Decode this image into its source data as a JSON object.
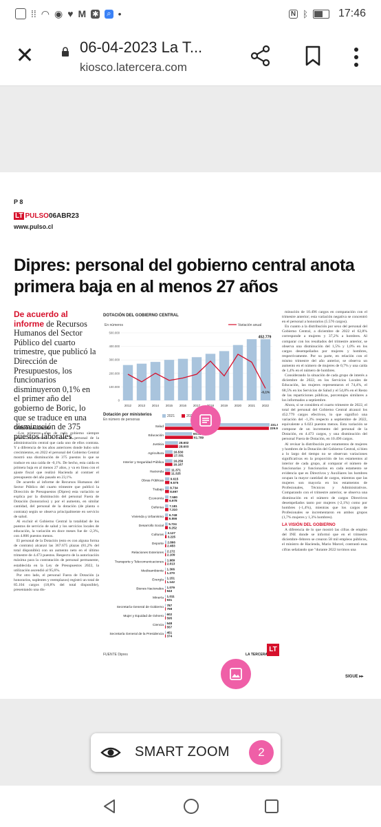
{
  "status_bar": {
    "time": "17:46",
    "left_icons": [
      "wifi-icon",
      "globe-icon",
      "heart-icon",
      "messenger-icon",
      "star-app-icon",
      "search-app-icon",
      "dot-icon"
    ],
    "right_icons": [
      "nfc-icon",
      "bluetooth-icon",
      "battery-icon"
    ]
  },
  "browser": {
    "title": "06-04-2023 La T...",
    "url": "kiosco.latercera.com"
  },
  "article": {
    "page_number": "P 8",
    "brand_lt": "LT",
    "brand_name": "PULSO",
    "brand_date": "06ABR23",
    "website": "www.pulso.cl",
    "headline": "Dipres: personal del gobierno central anota primera baja en al menos 27 años",
    "lead_red": "De acuerdo al informe",
    "lead_rest": "de Recursos Humanos del Sector Público del cuarto trimestre, que publicó la Dirección de Presupuestos, los funcionarios disminuyeron 0,1% en el primer año del gobierno de Boric, lo que se traduce en una disminución de 375 puestos laborales.",
    "byline": "CARLOS ALONSO",
    "col1_paragraphs": [
      "–Los primeros años de cada gobierno siempre generan expectativas en cuanto al personal de la administración central que cada uno de ellos contrata. Y a diferencia de los años anteriores donde hubo solo crecimientos, en 2022 el personal del Gobierno Central mostró una disminución de 375 puestos lo que se traduce en una caída de -0,1%. De hecho, esta caída es primera baja en al menos 27 años, y va en línea con el ajuste fiscal que realizó Hacienda al contraer el presupuesto del año pasado en 23,1%.",
      "De acuerdo al informe de Recursos Humanos del Sector Público del cuarto trimestre que publicó la Dirección de Presupuestos (Dipres) esta variación se explica por la disminución del personal Fuera de Dotación (honorarios) y por el aumento, en similar cantidad, del personal de la dotación (de planta o contrata) según se observa principalmente en servicio de salud.",
      "Al excluir el Gobierno Central la totalidad de los puestos de servicio de salud y los servicios locales de educación, la variación en doce meses fue de -2,3%, con 4.806 puestos menos.",
      "El personal de la Dotación (esto es con alguna forma de contrato) alcanzó las 367.675 plazas (81,2% del total disponible) con un aumento neto en el último trimestre de 4.473 puestos. Respecto de la autorización máxima para la contratación de personal permanente, establecida en la Ley de Presupuestos 2022, la utilización ascendió al 95,6%.",
      "Por otro lado, el personal Fuera de Dotación (a honorarios, suplentes y reemplazos) registró un total de 85.104 cargos (18,8% del total disponible), presentando una dis-"
    ],
    "col3_paragraphs": [
      "minución de 10.496 cargos en comparación con el trimestre anterior; esta variación negativa se concentró en el personal a honorarios (5.576 cargos).",
      "En cuanto a la distribución por sexo del personal del Gobierno Central, a diciembre de 2022 el 62,8% corresponde a mujeres y 37,2% a hombres. Al comparar con los resultados del trimestre anterior, se observa una disminución del 1,5% y 1,0% en los cargos desempeñados por mujeres y hombres, respectivamente. Por su parte, en relación con el mismo trimestre del año anterior, se observa un aumento en el número de mujeres de 0,7% y una caída de 1,4% en el número de hombres.",
      "Considerando la situación de cada grupo de interés a diciembre de 2022, en los Servicios Locales de Educación, las mujeres representaron el 74,4%, el 68,5% en los Servicios de Salud y el 54,8% en el Resto de las reparticiones públicas, porcentajes similares a los informados a septiembre.",
      "Ahora, si se considera el cuarto trimestre de 2022, el total del personal del Gobierno Central alcanzó los 452.779 cargos efectivos, lo que significó una variación del -1,3% respecto a septiembre de 2022, equivalente a 6.023 puestos menos. Esta variación se compone de un incremento del personal de la Dotación, en 4.473 cargos, y una disminución del personal Fuera de Dotación, en 10.496 cargos.",
      "Al revisar la distribución por estamentos de mujeres y hombres de la Dotación del Gobierno Central, si bien a lo largo del tiempo no se observan variaciones significativas en la proporción de los estamentos al interior de cada grupo, al comparar el número de funcionarias y funcionarios en cada estamento se evidencia que es Directivos y Auxiliares los hombres ocupan la mayor cantidad de cargos, mientras que las mujeres son mayoría en los estamentos de Profesionales, Técnicos y Administrativos. Comparando con el trimestre anterior, se observa una disminución en el número de cargos Directivos desempeñados tanto por mujeres (-2,1%) como por hombres (-1,4%), mientras que los cargos de Profesionales se incrementaron en ambos grupos (1,7% mujeres y 1,3% hombres)."
    ],
    "col3_subhead": "LA VISIÓN DEL GOBIERNO",
    "col3_last": "A diferencia de lo que mostró las cifras de empleo del INE donde se informó que en el trimestre diciembre–febrero se crearon 58 mil empleos públicos, el ministro de Hacienda, Mario Marcel, contrastó esas cifras señalando que \"durante 2022 tuvimos una",
    "source": "FUENTE Dipres",
    "publication": "LA TERCERA",
    "logo": "LT",
    "continue": "SIGUE ▸▸"
  },
  "chart_data": [
    {
      "type": "bar",
      "title": "DOTACIÓN DEL GOBIERNO CENTRAL",
      "ylabel": "En números",
      "categories": [
        "2012",
        "2013",
        "2014",
        "2015",
        "2016",
        "2017",
        "2018",
        "2019",
        "2020",
        "2021",
        "2022"
      ],
      "series": [
        {
          "name": "",
          "values": [
            262000,
            272000,
            285000,
            300000,
            308000,
            320000,
            345000,
            365000,
            410000,
            453154,
            452779
          ]
        },
        {
          "name": "Variación anual",
          "values": [
            4.0,
            1.8,
            4.3,
            2.2,
            2.9,
            4.0,
            7.8,
            3.5,
            9.8,
            7.5,
            -0.1
          ],
          "kind": "line"
        }
      ],
      "ylim": [
        0,
        500000
      ],
      "y_ticks": [
        0,
        100000,
        200000,
        300000,
        400000,
        500000
      ],
      "labels": {
        "2022": "452.779",
        "variacion_2022": "-0,1%"
      },
      "grid": true,
      "legend": "top-right"
    },
    {
      "type": "bar",
      "title": "Dotación por ministerios",
      "ylabel": "En número de personas",
      "series_names": [
        "2021",
        "2022"
      ],
      "categories": [
        "Salud",
        "Educación",
        "Justicia",
        "Agricultura",
        "Interior y Seguridad Pública",
        "Hacienda",
        "Obras Públicas",
        "Trabajo",
        "Economía",
        "Defensa",
        "Vivienda y Urbanismo",
        "Desarrollo Social",
        "Culturas",
        "Deporte",
        "Relaciones Exteriores",
        "Transporte y Telecomunicaciones",
        "Medioambiente",
        "Energía",
        "Bienes Nacionales",
        "Minería",
        "Secretaría General de Gobierno",
        "Mujer y Equidad de Género",
        "Ciencia",
        "Secretaría General de la Presidencia"
      ],
      "series": [
        {
          "name": "2021",
          "values": [
            231557,
            60038,
            28602,
            16530,
            16256,
            11371,
            9615,
            8734,
            7580,
            7181,
            6748,
            5724,
            3127,
            2866,
            2172,
            1989,
            1306,
            1151,
            1079,
            1011,
            787,
            602,
            548,
            451
          ]
        },
        {
          "name": "2022",
          "values": [
            229963,
            61789,
            28603,
            17331,
            16167,
            11325,
            9575,
            8697,
            6978,
            7310,
            6556,
            6252,
            3225,
            2483,
            2109,
            2013,
            1270,
            1142,
            943,
            931,
            768,
            595,
            557,
            374
          ]
        }
      ],
      "value_labels_2021": [
        "231.557",
        "60.038",
        "28.602",
        "16.530",
        "16.256",
        "11.371",
        "9.615",
        "8.734",
        "7.580",
        "7.181",
        "6.748",
        "5.724",
        "3.127",
        "2.866",
        "2.172",
        "1.989",
        "1.306",
        "1.151",
        "1.079",
        "1.011",
        "787",
        "602",
        "548",
        "451"
      ],
      "value_labels_2022": [
        "229.963",
        "61.789",
        "28.603",
        "17.331",
        "16.167",
        "11.325",
        "9.575",
        "8.697",
        "6.978",
        "7.310",
        "6.556",
        "6.252",
        "3.225",
        "2.483",
        "2.109",
        "2.013",
        "1.270",
        "1.142",
        "943",
        "931",
        "768",
        "595",
        "557",
        "374"
      ],
      "colors": {
        "2021": "#a9c4dd",
        "2022": "#d6102b"
      },
      "legend": "top"
    }
  ],
  "overlay": {
    "smart_zoom_label": "SMART ZOOM",
    "smart_zoom_badge": "2"
  },
  "colors": {
    "accent_pink": "#ef5fa7",
    "brand_red": "#d6102b",
    "bar_blue": "#a9c4dd"
  }
}
